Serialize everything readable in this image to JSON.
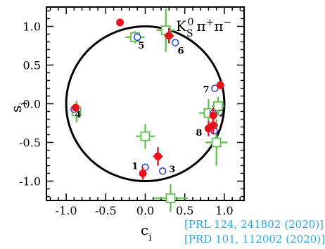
{
  "chart_data": {
    "type": "scatter",
    "title": "K_S^0 π^+ π^-",
    "xlabel": "c",
    "xlabel_sub": "i",
    "ylabel": "s",
    "ylabel_sub": "i",
    "xlim": [
      -1.25,
      1.25
    ],
    "ylim": [
      -1.25,
      1.25
    ],
    "x_ticks": [
      "-1.0",
      "-0.5",
      "0.0",
      "0.5",
      "1.0"
    ],
    "y_ticks": [
      "1.0",
      "0.5",
      "0.0",
      "-0.5",
      "-1.0"
    ],
    "x_tick_values": [
      -1.0,
      -0.5,
      0.0,
      0.5,
      1.0
    ],
    "y_tick_values": [
      1.0,
      0.5,
      0.0,
      -0.5,
      -1.0
    ],
    "unit_circle": true,
    "series": [
      {
        "marker": "filled-circle",
        "color": "#e8121c",
        "points": [
          {
            "x": -0.32,
            "y": 1.05,
            "xerr": 0.02,
            "yerr": 0.04
          },
          {
            "x": 0.3,
            "y": 0.88,
            "xerr": 0.06,
            "yerr": 0.1
          },
          {
            "x": 0.95,
            "y": 0.24,
            "xerr": 0.04,
            "yerr": 0.05
          },
          {
            "x": 0.86,
            "y": -0.15,
            "xerr": 0.05,
            "yerr": 0.1
          },
          {
            "x": 0.86,
            "y": -0.28,
            "xerr": 0.06,
            "yerr": 0.12
          },
          {
            "x": 0.8,
            "y": -0.32,
            "xerr": 0.05,
            "yerr": 0.1
          },
          {
            "x": -0.88,
            "y": -0.05,
            "xerr": 0.04,
            "yerr": 0.05
          },
          {
            "x": 0.16,
            "y": -0.68,
            "xerr": 0.06,
            "yerr": 0.12
          },
          {
            "x": -0.03,
            "y": -0.9,
            "xerr": 0.04,
            "yerr": 0.08
          }
        ]
      },
      {
        "marker": "open-circle",
        "color": "#2a3fd6",
        "points": [
          {
            "x": -0.1,
            "y": 0.86
          },
          {
            "x": 0.38,
            "y": 0.79
          },
          {
            "x": 0.88,
            "y": 0.2
          },
          {
            "x": 0.86,
            "y": -0.12
          },
          {
            "x": -0.9,
            "y": -0.07
          },
          {
            "x": 0.87,
            "y": -0.35
          },
          {
            "x": 0.0,
            "y": -0.82
          },
          {
            "x": 0.22,
            "y": -0.87
          }
        ]
      },
      {
        "marker": "open-square",
        "color": "#5cc04a",
        "points": [
          {
            "x": -0.13,
            "y": 0.86,
            "xerr": 0.12,
            "yerr": 0.08
          },
          {
            "x": 0.26,
            "y": 0.95,
            "xerr": 0.12,
            "yerr": 0.28
          },
          {
            "x": 0.92,
            "y": -0.03,
            "xerr": 0.08,
            "yerr": 0.12
          },
          {
            "x": 0.8,
            "y": -0.12,
            "xerr": 0.12,
            "yerr": 0.18
          },
          {
            "x": -0.87,
            "y": -0.1,
            "xerr": 0.06,
            "yerr": 0.14
          },
          {
            "x": 0.0,
            "y": -0.42,
            "xerr": 0.12,
            "yerr": 0.16
          },
          {
            "x": 0.9,
            "y": -0.5,
            "xerr": 0.14,
            "yerr": 0.3
          },
          {
            "x": 0.32,
            "y": -1.22,
            "xerr": 0.22,
            "yerr": 0.18
          }
        ]
      }
    ],
    "point_labels": [
      {
        "text": "1",
        "x": -0.13,
        "y": -0.8
      },
      {
        "text": "2",
        "x": 0.97,
        "y": -0.12
      },
      {
        "text": "3",
        "x": 0.34,
        "y": -0.84
      },
      {
        "text": "4",
        "x": -0.85,
        "y": -0.13
      },
      {
        "text": "5",
        "x": -0.05,
        "y": 0.76
      },
      {
        "text": "6",
        "x": 0.45,
        "y": 0.69
      },
      {
        "text": "7",
        "x": 0.77,
        "y": 0.19
      },
      {
        "text": "8",
        "x": 0.68,
        "y": -0.37
      }
    ]
  },
  "references": [
    "[PRL 124, 241802 (2020)]",
    "[PRD 101, 112002 (2020)]"
  ]
}
